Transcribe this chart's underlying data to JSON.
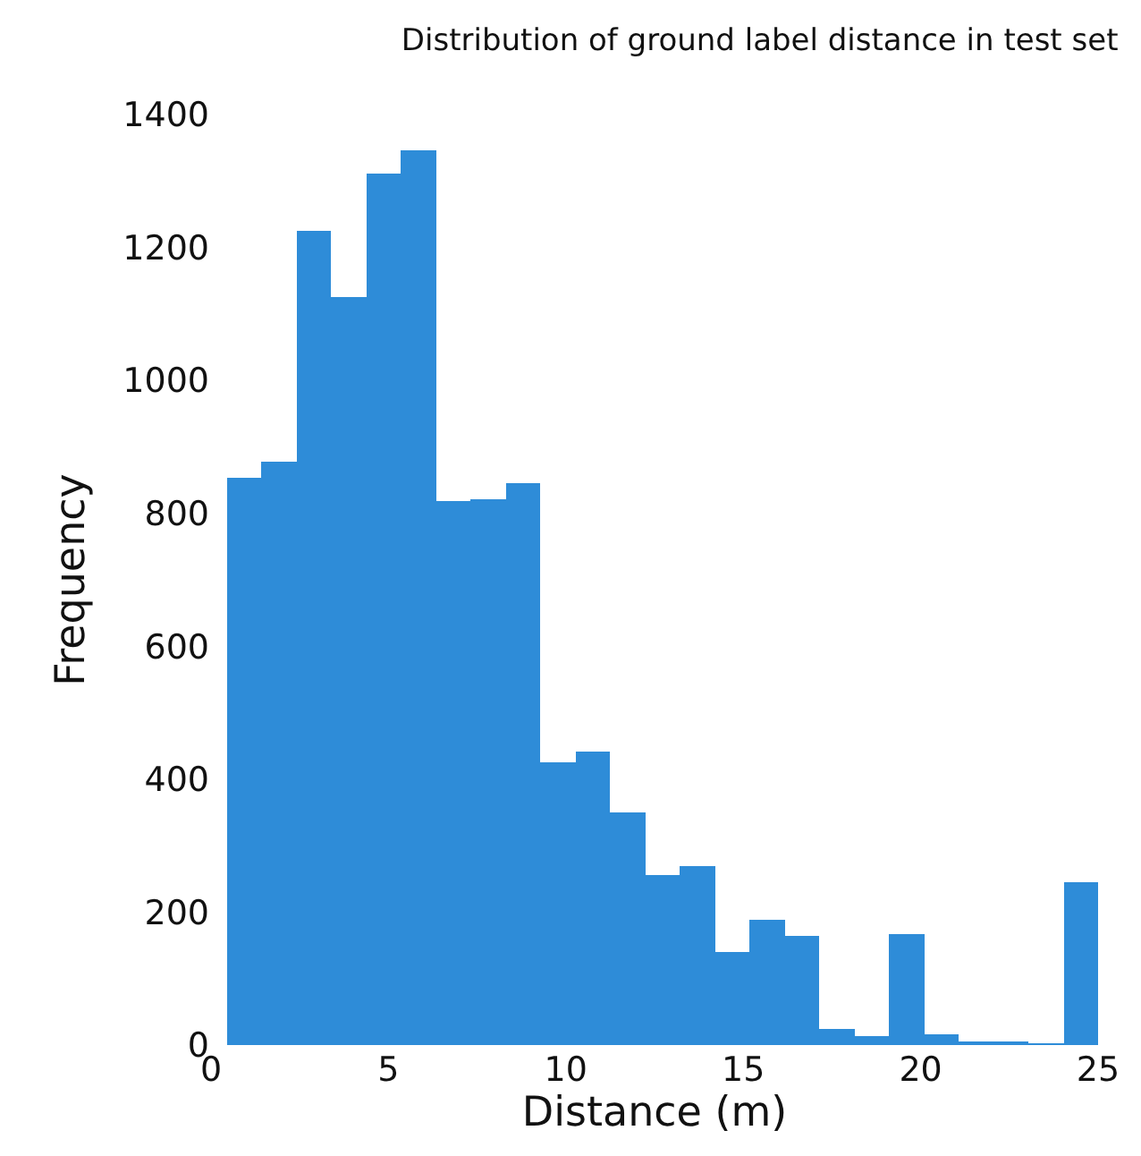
{
  "chart_data": {
    "type": "histogram",
    "title": "Distribution of ground label distance in test set",
    "xlabel": "Distance (m)",
    "ylabel": "Frequency",
    "bins": [
      0.45,
      1.43,
      2.41,
      3.4,
      4.38,
      5.36,
      6.34,
      7.32,
      8.31,
      9.29,
      10.27,
      11.25,
      12.23,
      13.22,
      14.2,
      15.18,
      16.16,
      17.14,
      18.13,
      19.11,
      20.09,
      21.07,
      22.05,
      23.04,
      24.02,
      25.0
    ],
    "values": [
      853,
      878,
      1225,
      1125,
      1311,
      1346,
      818,
      821,
      845,
      425,
      442,
      350,
      256,
      269,
      140,
      188,
      164,
      24,
      13,
      167,
      16,
      5,
      3,
      1,
      245
    ],
    "color": "#2e8cd8",
    "xlim": [
      0,
      25
    ],
    "xticks": [
      0,
      5,
      10,
      15,
      20,
      25
    ],
    "ylim": [
      0,
      1400
    ],
    "yticks": [
      0,
      200,
      400,
      600,
      800,
      1000,
      1200,
      1400
    ]
  }
}
